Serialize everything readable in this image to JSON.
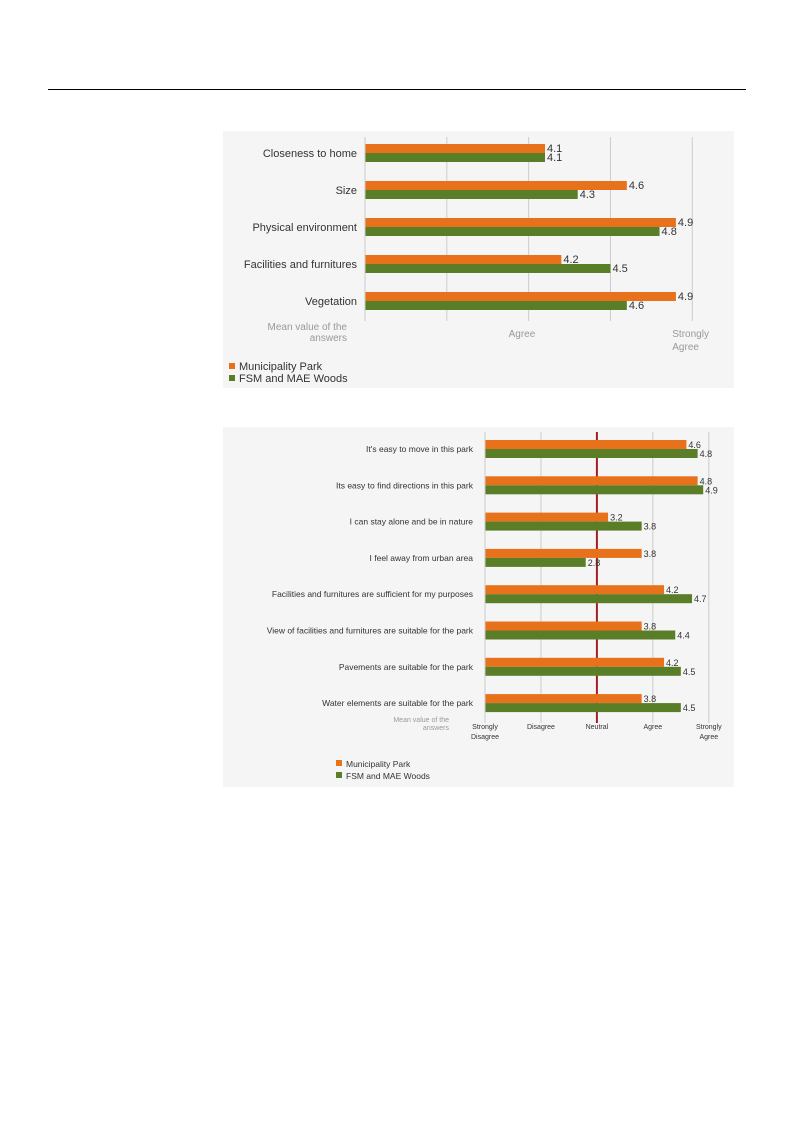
{
  "colors": {
    "municipality": "#e8711c",
    "fsm": "#5a7d28",
    "neutral_line": "#a31f24",
    "grid": "#cccccc",
    "text": "#333333",
    "muted": "#999999"
  },
  "chart_data": [
    {
      "type": "bar",
      "orientation": "horizontal",
      "categories": [
        "Closeness to home",
        "Size",
        "Physical environment",
        "Facilities and furnitures",
        "Vegetation"
      ],
      "series": [
        {
          "name": "Municipality Park",
          "values": [
            4.1,
            4.6,
            4.9,
            4.2,
            4.9
          ]
        },
        {
          "name": "FSM and MAE Woods",
          "values": [
            4.1,
            4.3,
            4.8,
            4.5,
            4.6
          ]
        }
      ],
      "xlim": [
        3,
        5.2
      ],
      "grid": true,
      "tick_values": [
        3,
        3.5,
        4,
        4.5,
        5
      ],
      "tick_labels": [
        {
          "value": 4,
          "text": "Agree"
        },
        {
          "value": 5,
          "text": "Strongly Agree"
        }
      ],
      "axis_caption": "Mean value of the answers",
      "legend": "bottom-left"
    },
    {
      "type": "bar",
      "orientation": "horizontal",
      "categories": [
        "It's easy to move in this park",
        "Its easy to find directions in this park",
        "I can stay alone and be in nature",
        "I feel away from urban area",
        "Facilities and furnitures are sufficient for my purposes",
        "View of facilities and furnitures are suitable for the park",
        "Pavements are suitable for the park",
        "Water elements are suitable for the park"
      ],
      "series": [
        {
          "name": "Municipality Park",
          "values": [
            4.6,
            4.8,
            3.2,
            3.8,
            4.2,
            3.8,
            4.2,
            3.8
          ]
        },
        {
          "name": "FSM and MAE Woods",
          "values": [
            4.8,
            4.9,
            3.8,
            2.8,
            4.7,
            4.4,
            4.5,
            4.5
          ]
        }
      ],
      "xlim": [
        1,
        5.2
      ],
      "grid": true,
      "neutral_line": 3,
      "tick_labels": [
        {
          "value": 1,
          "text": "Strongly Disagree"
        },
        {
          "value": 2,
          "text": "Disagree"
        },
        {
          "value": 3,
          "text": "Neutral"
        },
        {
          "value": 4,
          "text": "Agree"
        },
        {
          "value": 5,
          "text": "Strongly Agree"
        }
      ],
      "axis_caption": "Mean value of the answers",
      "legend": "bottom-center"
    }
  ]
}
